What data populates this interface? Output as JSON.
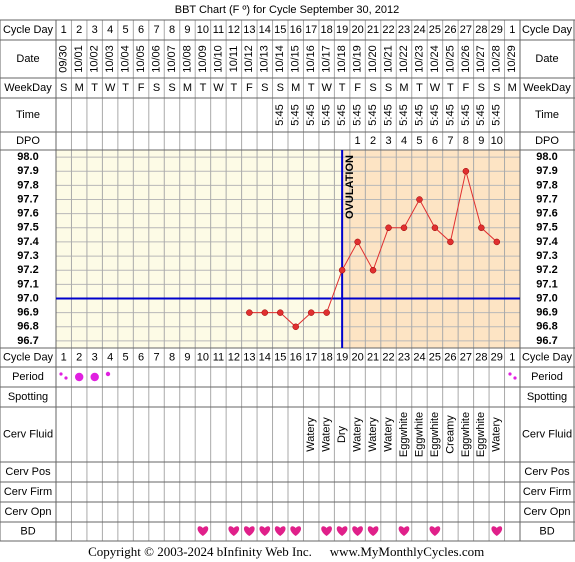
{
  "chart_data": {
    "type": "line",
    "title": "BBT Chart (F º) for Cycle September 30, 2012",
    "row_labels": {
      "cycle_day": "Cycle Day",
      "date": "Date",
      "weekday": "WeekDay",
      "time": "Time",
      "dpo": "DPO",
      "period": "Period",
      "spotting": "Spotting",
      "cerv_fluid": "Cerv Fluid",
      "cerv_pos": "Cerv Pos",
      "cerv_firm": "Cerv Firm",
      "cerv_opn": "Cerv Opn",
      "bd": "BD"
    },
    "cycle_days": [
      1,
      2,
      3,
      4,
      5,
      6,
      7,
      8,
      9,
      10,
      11,
      12,
      13,
      14,
      15,
      16,
      17,
      18,
      19,
      20,
      21,
      22,
      23,
      24,
      25,
      26,
      27,
      28,
      29,
      1
    ],
    "dates": [
      "09/30",
      "10/01",
      "10/02",
      "10/03",
      "10/04",
      "10/05",
      "10/06",
      "10/07",
      "10/08",
      "10/09",
      "10/10",
      "10/11",
      "10/12",
      "10/13",
      "10/14",
      "10/15",
      "10/16",
      "10/17",
      "10/18",
      "10/19",
      "10/20",
      "10/21",
      "10/22",
      "10/23",
      "10/24",
      "10/25",
      "10/26",
      "10/27",
      "10/28",
      "10/29"
    ],
    "weekdays": [
      "S",
      "M",
      "T",
      "W",
      "T",
      "F",
      "S",
      "S",
      "M",
      "T",
      "W",
      "T",
      "F",
      "S",
      "S",
      "M",
      "T",
      "W",
      "T",
      "F",
      "S",
      "S",
      "M",
      "T",
      "W",
      "T",
      "F",
      "S",
      "S",
      "M"
    ],
    "times": [
      null,
      null,
      null,
      null,
      null,
      null,
      null,
      null,
      null,
      null,
      null,
      null,
      null,
      null,
      "5:45",
      "5:45",
      "5:45",
      "5:45",
      "5:45",
      "5:45",
      "5:45",
      "5:45",
      "5:45",
      "5:45",
      "5:45",
      "5:45",
      "5:45",
      "5:45",
      "5:45",
      null
    ],
    "dpo": [
      null,
      null,
      null,
      null,
      null,
      null,
      null,
      null,
      null,
      null,
      null,
      null,
      null,
      null,
      null,
      null,
      null,
      null,
      null,
      1,
      2,
      3,
      4,
      5,
      6,
      7,
      8,
      9,
      10,
      null
    ],
    "values": [
      null,
      null,
      null,
      null,
      null,
      null,
      null,
      null,
      null,
      null,
      null,
      null,
      96.9,
      96.9,
      96.9,
      96.8,
      96.9,
      96.9,
      97.2,
      97.4,
      97.2,
      97.5,
      97.5,
      97.7,
      97.5,
      97.4,
      97.9,
      97.5,
      97.4,
      null
    ],
    "color": "#e03030",
    "ylim": [
      96.65,
      98.05
    ],
    "yticks": [
      {
        "value": 98,
        "label": "98.0"
      },
      97.9,
      97.8,
      97.7,
      97.6,
      97.5,
      97.4,
      97.3,
      97.2,
      97.1,
      {
        "value": 97,
        "label": "97.0"
      },
      96.9,
      96.8,
      96.7
    ],
    "grid": true,
    "coverline": 97,
    "ovulation_day": 19,
    "annotation": "OVULATION",
    "cerv_fluid": [
      null,
      null,
      null,
      null,
      null,
      null,
      null,
      null,
      null,
      null,
      null,
      null,
      null,
      null,
      null,
      null,
      "Watery",
      "Watery",
      "Dry",
      "Watery",
      "Watery",
      "Watery",
      "Eggwhite",
      "Eggwhite",
      "Eggwhite",
      "Creamy",
      "Eggwhite",
      "Eggwhite",
      "Watery",
      null
    ],
    "copyright": "Copyright © 2003-2024 bInfinity Web Inc.",
    "website": "www.MyMonthlyCycles.com"
  }
}
